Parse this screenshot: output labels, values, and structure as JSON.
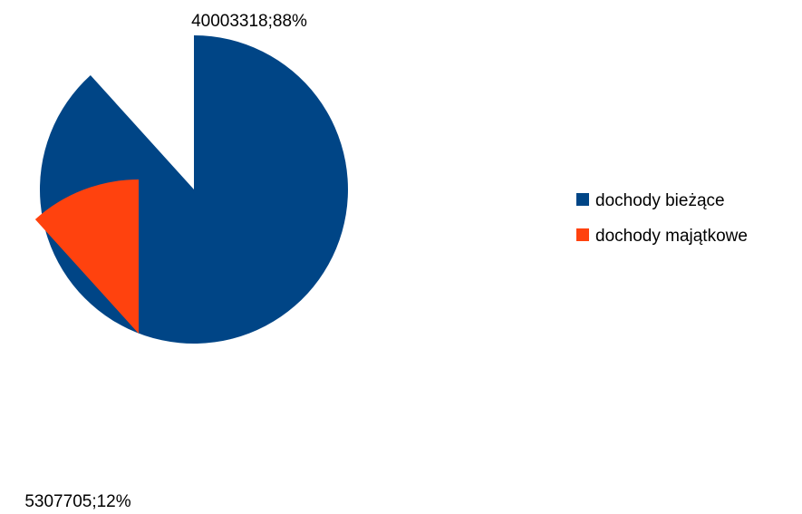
{
  "chart_data": {
    "type": "pie",
    "exploded": true,
    "categories": [
      "dochody bieżące",
      "dochody majątkowe"
    ],
    "values": [
      40003318,
      5307705
    ],
    "percent_labels": [
      "88%",
      "12%"
    ],
    "data_labels": [
      "40003318;88%",
      "5307705;12%"
    ],
    "colors": [
      "#004586",
      "#ff420e"
    ],
    "legend_position": "right"
  }
}
